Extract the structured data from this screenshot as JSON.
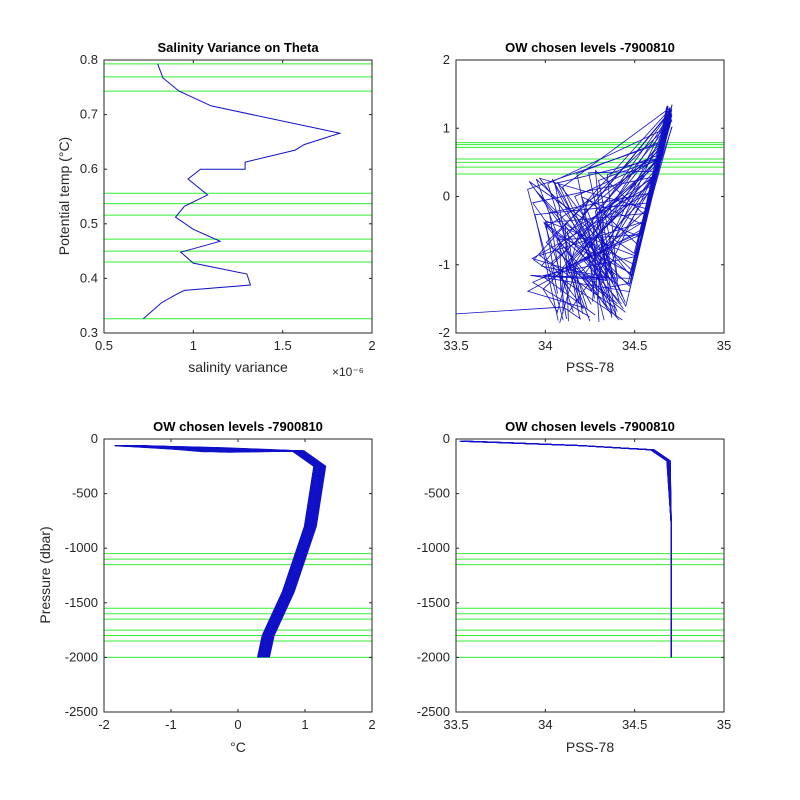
{
  "chart_data": [
    {
      "type": "line",
      "title": "Salinity Variance on Theta",
      "xlabel": "salinity variance",
      "ylabel": "Potential temp (°C)",
      "x_exponent": "×10⁻⁶",
      "xlim": [
        0.5,
        2
      ],
      "ylim": [
        0.3,
        0.8
      ],
      "xticks": [
        "0.5",
        "1",
        "1.5",
        "2"
      ],
      "yticks": [
        "0.3",
        "0.4",
        "0.5",
        "0.6",
        "0.7",
        "0.8"
      ],
      "colors": {
        "series": "#1010c8",
        "levels": "#33ee33"
      },
      "series": [
        {
          "x": [
            0.72,
            0.82,
            0.9,
            0.95,
            1.32,
            1.3,
            1.0,
            0.93,
            1.15,
            1.0,
            0.9,
            0.95,
            1.08,
            0.97,
            1.04,
            1.29,
            1.29,
            1.57,
            1.62,
            1.82,
            1.1,
            0.92,
            0.83,
            0.8
          ],
          "y": [
            0.326,
            0.355,
            0.37,
            0.378,
            0.388,
            0.408,
            0.428,
            0.448,
            0.468,
            0.49,
            0.512,
            0.532,
            0.553,
            0.582,
            0.6,
            0.6,
            0.613,
            0.635,
            0.645,
            0.666,
            0.716,
            0.743,
            0.767,
            0.793
          ]
        }
      ],
      "hlines": [
        0.326,
        0.43,
        0.45,
        0.472,
        0.516,
        0.537,
        0.556,
        0.743,
        0.769,
        0.793
      ]
    },
    {
      "type": "line",
      "title": "OW chosen levels -7900810",
      "xlabel": "PSS-78",
      "ylabel": "",
      "xlim": [
        33.5,
        35
      ],
      "ylim": [
        -2,
        2
      ],
      "xticks": [
        "33.5",
        "34",
        "34.5",
        "35"
      ],
      "yticks": [
        "-2",
        "-1",
        "0",
        "1",
        "2"
      ],
      "hlines": [
        0.33,
        0.43,
        0.5,
        0.55,
        0.72,
        0.76,
        0.79
      ]
    },
    {
      "type": "line",
      "title": "OW chosen levels -7900810",
      "xlabel": "°C",
      "ylabel": "Pressure (dbar)",
      "xlim": [
        -2,
        2
      ],
      "ylim": [
        -2500,
        0
      ],
      "xticks": [
        "-2",
        "-1",
        "0",
        "1",
        "2"
      ],
      "yticks": [
        "-2500",
        "-2000",
        "-1500",
        "-1000",
        "-500",
        "0"
      ],
      "hlines": [
        -1050,
        -1100,
        -1150,
        -1550,
        -1600,
        -1650,
        -1750,
        -1800,
        -1850,
        -2000
      ]
    },
    {
      "type": "line",
      "title": "OW chosen levels -7900810",
      "xlabel": "PSS-78",
      "ylabel": "",
      "xlim": [
        33.5,
        35
      ],
      "ylim": [
        -2500,
        0
      ],
      "xticks": [
        "33.5",
        "34",
        "34.5",
        "35"
      ],
      "yticks": [
        "-2500",
        "-2000",
        "-1500",
        "-1000",
        "-500",
        "0"
      ],
      "hlines": [
        -1050,
        -1100,
        -1150,
        -1550,
        -1600,
        -1650,
        -1750,
        -1800,
        -1850,
        -2000
      ]
    }
  ]
}
